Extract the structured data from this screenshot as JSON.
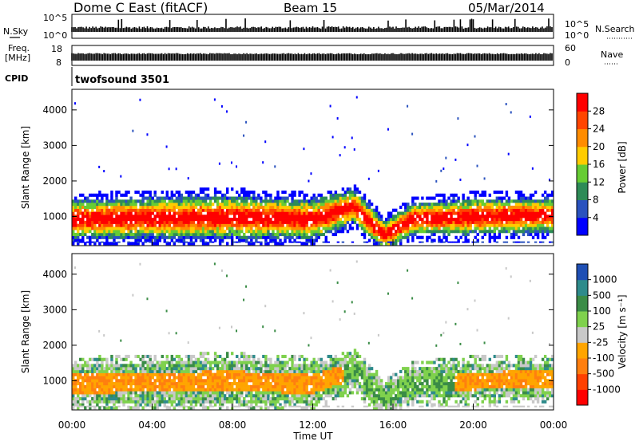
{
  "header": {
    "station": "Dome C East (fitACF)",
    "beam": "Beam 15",
    "date": "05/Mar/2014"
  },
  "noise_panel": {
    "left_label": "N.Sky",
    "left_ticks": [
      "10^5",
      "10^0"
    ],
    "right_label": "N.Search",
    "right_ticks": [
      "10^5",
      "10^0"
    ]
  },
  "freq_panel": {
    "left_label_1": "Freq.",
    "left_label_2": "[MHz]",
    "left_ticks": [
      "18",
      "8"
    ],
    "right_label": "Nave",
    "right_ticks": [
      "60",
      "0"
    ]
  },
  "cpid_panel": {
    "label": "CPID",
    "text": "twofsound 3501"
  },
  "colors": {
    "power_scale": [
      "#0000ff",
      "#2a52be",
      "#2e8b57",
      "#66cc33",
      "#ffcc00",
      "#ff8c00",
      "#ff4500",
      "#ff0000"
    ],
    "velocity_scale": [
      "#1f4fb4",
      "#2e8b8b",
      "#3a8c46",
      "#7fd14d",
      "#c8c8c8",
      "#ffa500",
      "#ff7f0f",
      "#ff4000",
      "#ff0000"
    ],
    "frame": "#000000"
  },
  "chart_data": [
    {
      "type": "heatmap",
      "name": "power-panel",
      "ylabel": "Slant Range [km]",
      "xlim": [
        "00:00",
        "24:00"
      ],
      "ylim": [
        180,
        4580
      ],
      "y_ticks": [
        "4000",
        "3000",
        "2000",
        "1000"
      ],
      "y_tick_values": [
        4000,
        3000,
        2000,
        1000
      ],
      "colorbar": {
        "label": "Power [dB]",
        "ticks": [
          "28",
          "24",
          "20",
          "16",
          "12",
          "8",
          "4"
        ],
        "tick_values": [
          28,
          24,
          20,
          16,
          12,
          8,
          4
        ],
        "range": [
          0,
          32
        ]
      },
      "band_core_km": [
        [
          0,
          880
        ],
        [
          4,
          920
        ],
        [
          8,
          940
        ],
        [
          12,
          880
        ],
        [
          14,
          1250
        ],
        [
          15.5,
          430
        ],
        [
          17,
          900
        ],
        [
          20,
          960
        ],
        [
          24,
          1000
        ]
      ],
      "band_halfwidth_km": [
        [
          0,
          600
        ],
        [
          8,
          650
        ],
        [
          12,
          600
        ],
        [
          15.5,
          450
        ],
        [
          20,
          560
        ],
        [
          24,
          520
        ]
      ]
    },
    {
      "type": "heatmap",
      "name": "velocity-panel",
      "ylabel": "Slant Range [km]",
      "xlabel": "Time UT",
      "x_ticks": [
        "00:00",
        "04:00",
        "08:00",
        "12:00",
        "16:00",
        "20:00",
        "00:00"
      ],
      "x_tick_values": [
        0,
        4,
        8,
        12,
        16,
        20,
        24
      ],
      "xlim": [
        "00:00",
        "24:00"
      ],
      "ylim": [
        180,
        4580
      ],
      "y_ticks": [
        "4000",
        "3000",
        "2000",
        "1000"
      ],
      "y_tick_values": [
        4000,
        3000,
        2000,
        1000
      ],
      "colorbar": {
        "label": "Velocity [m s⁻¹]",
        "ticks": [
          "1000",
          "500",
          "100",
          "25",
          "-25",
          "-100",
          "-500",
          "-1000"
        ]
      }
    }
  ]
}
